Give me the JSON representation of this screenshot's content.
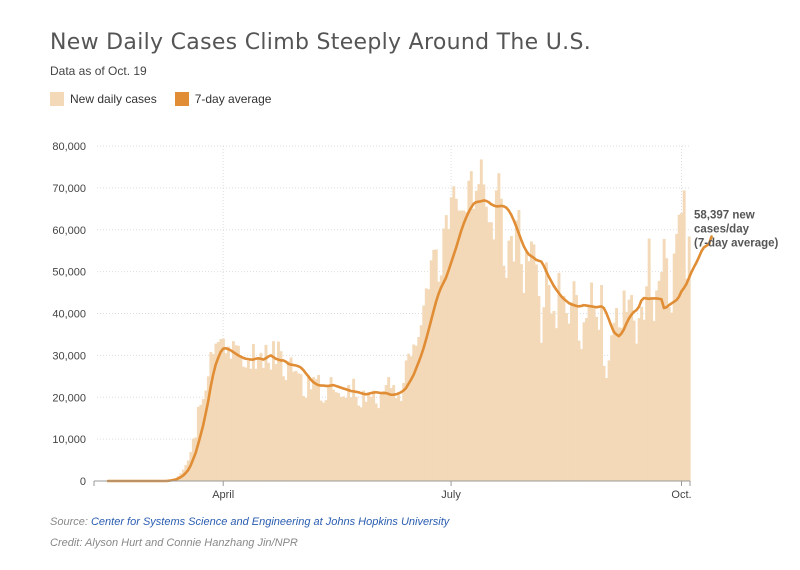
{
  "header": {
    "title": "New Daily Cases Climb Steeply Around The U.S.",
    "subtitle": "Data as of Oct. 19"
  },
  "legend": {
    "daily_label": "New daily cases",
    "avg_label": "7-day average"
  },
  "colors": {
    "daily": "#f3d9b8",
    "avg": "#e08d35",
    "grid": "#dddddd"
  },
  "footer": {
    "source_prefix": "Source:",
    "source_link": "Center for Systems Science and Engineering at Johns Hopkins University",
    "credit": "Credit: Alyson Hurt and Connie Hanzhang Jin/NPR"
  },
  "chart_data": {
    "type": "bar+line",
    "title": "New Daily Cases Climb Steeply Around The U.S.",
    "subtitle": "Data as of Oct. 19",
    "x_start_date": "2020-02-15",
    "x_end_date": "2020-10-19",
    "ylim": [
      0,
      80000
    ],
    "y_ticks": [
      0,
      10000,
      20000,
      30000,
      40000,
      50000,
      60000,
      70000,
      80000
    ],
    "y_tick_labels": [
      "0",
      "10,000",
      "20,000",
      "30,000",
      "40,000",
      "50,000",
      "60,000",
      "70,000",
      "80,000"
    ],
    "x_ticks": [
      {
        "label": "April",
        "day_index": 46
      },
      {
        "label": "July",
        "day_index": 137
      },
      {
        "label": "Oct.",
        "day_index": 229
      }
    ],
    "series": [
      {
        "name": "New daily cases",
        "kind": "bar",
        "values": [
          0,
          0,
          0,
          0,
          0,
          0,
          0,
          0,
          0,
          0,
          0,
          0,
          0,
          0,
          0,
          0,
          0,
          0,
          0,
          0,
          0,
          0,
          0,
          0,
          100,
          200,
          400,
          600,
          1200,
          1800,
          2700,
          3800,
          4900,
          6900,
          10100,
          10400,
          17700,
          18200,
          19600,
          21600,
          25000,
          30800,
          30300,
          32800,
          33200,
          33900,
          34000,
          30500,
          32100,
          29200,
          33400,
          32400,
          32300,
          29500,
          27300,
          27100,
          28700,
          26800,
          32700,
          26800,
          29100,
          30600,
          27000,
          32500,
          28200,
          26600,
          33400,
          27900,
          33300,
          31000,
          25000,
          24100,
          28600,
          29500,
          26100,
          26300,
          25700,
          25500,
          20300,
          19900,
          25200,
          21900,
          24800,
          24300,
          25300,
          19200,
          18700,
          19300,
          22600,
          24800,
          21800,
          21200,
          21000,
          20100,
          20200,
          19800,
          22900,
          20000,
          24400,
          20100,
          18000,
          17600,
          21600,
          18900,
          21200,
          20100,
          21600,
          18500,
          17400,
          20700,
          21500,
          22900,
          24800,
          22200,
          22900,
          19800,
          20500,
          19100,
          23400,
          28800,
          30400,
          29800,
          32600,
          32300,
          34400,
          37200,
          41900,
          46000,
          45800,
          52700,
          55200,
          55300,
          47600,
          49100,
          60300,
          63500,
          60200,
          67700,
          70400,
          67400,
          64600,
          64600,
          64600,
          64200,
          71700,
          74000,
          65000,
          69300,
          70900,
          76800,
          70800,
          65500,
          61800,
          61800,
          57700,
          69400,
          73500,
          67400,
          51400,
          48500,
          57400,
          58500,
          52400,
          62200,
          64700,
          51800,
          44900,
          54700,
          52500,
          57200,
          56500,
          51700,
          44200,
          33000,
          41500,
          52200,
          46800,
          40000,
          40600,
          36500,
          49700,
          44100,
          44200,
          40100,
          37600,
          42700,
          47700,
          44400,
          33500,
          31500,
          37900,
          38900,
          41500,
          47400,
          41200,
          39200,
          36100,
          46800,
          27500,
          24600,
          28800,
          34800,
          37800,
          41300,
          36700,
          36600,
          45500,
          40400,
          43300,
          44400,
          38300,
          32800,
          38900,
          41600,
          38500,
          46500,
          57900,
          43300,
          38200,
          45500,
          47800,
          49900,
          57800,
          53200,
          41500,
          40200,
          54300,
          59000,
          63600,
          64000,
          69400,
          48300,
          58400
        ]
      },
      {
        "name": "7-day average",
        "kind": "line",
        "values": [
          0,
          0,
          0,
          0,
          0,
          0,
          0,
          0,
          0,
          0,
          0,
          0,
          0,
          0,
          0,
          0,
          0,
          0,
          0,
          0,
          0,
          0,
          0,
          0,
          50,
          120,
          220,
          350,
          600,
          900,
          1300,
          1900,
          2600,
          3700,
          5200,
          6700,
          8800,
          11000,
          13300,
          16100,
          19000,
          22500,
          25400,
          27800,
          29400,
          30800,
          31600,
          31700,
          31500,
          31200,
          30800,
          30400,
          30000,
          29700,
          29400,
          29200,
          29100,
          29000,
          29000,
          29200,
          29300,
          29200,
          29000,
          29300,
          29700,
          30000,
          29600,
          29200,
          29000,
          28800,
          28800,
          28500,
          28000,
          27800,
          27700,
          27600,
          27400,
          27100,
          26500,
          25700,
          25000,
          24200,
          23600,
          23200,
          22900,
          22800,
          22800,
          22700,
          22700,
          22800,
          22900,
          22700,
          22500,
          22300,
          22100,
          21900,
          21700,
          21500,
          21400,
          21300,
          21200,
          21000,
          20800,
          20700,
          20800,
          21000,
          21100,
          21200,
          21100,
          21000,
          21000,
          21000,
          20800,
          20600,
          20600,
          20700,
          20900,
          21200,
          21600,
          22200,
          23200,
          24200,
          25300,
          26800,
          28300,
          29900,
          31700,
          33800,
          36000,
          38300,
          40600,
          42800,
          44700,
          46200,
          47400,
          48600,
          50300,
          52100,
          53900,
          55700,
          57700,
          59700,
          61400,
          62900,
          64200,
          65300,
          66200,
          66600,
          66700,
          66800,
          67000,
          66900,
          66600,
          66100,
          65800,
          65600,
          65600,
          65700,
          65600,
          65300,
          64600,
          63600,
          62300,
          60800,
          59200,
          57600,
          56100,
          55000,
          54100,
          53700,
          53300,
          52800,
          52600,
          52400,
          51400,
          50100,
          48800,
          47700,
          46600,
          45700,
          44900,
          44100,
          43500,
          43000,
          42500,
          42200,
          42000,
          41800,
          41700,
          41800,
          42000,
          41900,
          41800,
          41700,
          41600,
          41500,
          41600,
          41700,
          41300,
          40100,
          38600,
          37000,
          35600,
          35000,
          34600,
          35200,
          36200,
          37600,
          38800,
          39700,
          40400,
          40800,
          41600,
          43100,
          43700,
          43600,
          43500,
          43600,
          43600,
          43600,
          43500,
          43400,
          41300,
          41500,
          42000,
          42400,
          42800,
          43200,
          44000,
          45300,
          46100,
          47100,
          48500,
          49900,
          51100,
          52200,
          53500,
          54900,
          55800,
          56200,
          56600,
          58397
        ]
      }
    ],
    "annotation": {
      "lines": [
        "58,397 new",
        "cases/day",
        "(7-day average)"
      ],
      "value": 58397
    }
  }
}
